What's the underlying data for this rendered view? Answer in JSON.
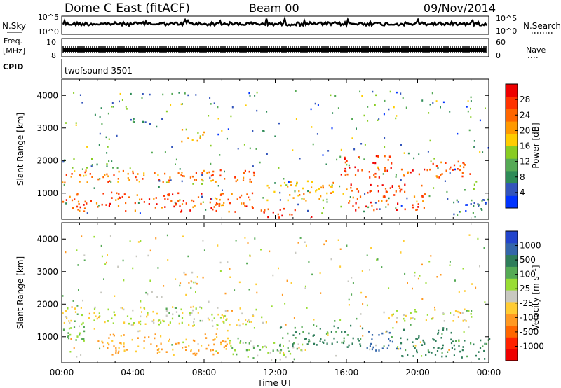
{
  "header": {
    "station": "Dome C East (fitACF)",
    "beam": "Beam 00",
    "date": "09/Nov/2014"
  },
  "strips": {
    "nsky_label": "N.Sky",
    "nsky_ticks": [
      "10^5",
      "10^0"
    ],
    "nsearch_label": "N.Search",
    "nsearch_ticks": [
      "10^5",
      "10^0"
    ],
    "freq_label": "Freq.",
    "freq_unit": "[MHz]",
    "freq_ticks": [
      "10",
      "8"
    ],
    "nave_label": "Nave",
    "nave_ticks": [
      "60",
      "0"
    ],
    "cpid_label": "CPID",
    "cpid_value": "twofsound 3501"
  },
  "colorbars": {
    "power": {
      "label": "Power [dB]",
      "ticks": [
        "4",
        "8",
        "12",
        "16",
        "20",
        "24",
        "28"
      ],
      "colors": [
        "#0033ff",
        "#3355bb",
        "#2e8b57",
        "#55aa55",
        "#88cc22",
        "#ffcc00",
        "#ff9900",
        "#ff6600",
        "#ff3300",
        "#ee0000"
      ]
    },
    "velocity": {
      "label": "Velocity [m s⁻¹]",
      "ticks": [
        "1000",
        "500",
        "100",
        "25",
        "-25",
        "-100",
        "-500",
        "-1000"
      ],
      "colors": [
        "#2244cc",
        "#3366aa",
        "#2e7d5a",
        "#55aa55",
        "#99dd33",
        "#c8c8c0",
        "#ffcc33",
        "#ff9922",
        "#ff6600",
        "#ff2200",
        "#ee0000"
      ]
    }
  },
  "chart_data": [
    {
      "type": "heatmap",
      "panel": "power",
      "ylabel": "Slant Range [km]",
      "ylim": [
        200,
        4500
      ],
      "yticks": [
        "1000",
        "2000",
        "3000",
        "4000"
      ],
      "xlim": [
        "00:00",
        "24:00"
      ],
      "bands": [
        {
          "t": [
            0.0,
            11.5
          ],
          "r": [
            1350,
            1750
          ],
          "value": 24
        },
        {
          "t": [
            0.0,
            11.0
          ],
          "r": [
            450,
            1050
          ],
          "value": 26
        },
        {
          "t": [
            0.0,
            3.0
          ],
          "r": [
            1800,
            2100
          ],
          "value": 12
        },
        {
          "t": [
            3.5,
            6.0
          ],
          "r": [
            3150,
            3300
          ],
          "value": 10
        },
        {
          "t": [
            6.5,
            8.0
          ],
          "r": [
            2600,
            3000
          ],
          "value": 18
        },
        {
          "t": [
            11.0,
            14.0
          ],
          "r": [
            250,
            550
          ],
          "value": 28
        },
        {
          "t": [
            11.5,
            16.0
          ],
          "r": [
            800,
            1400
          ],
          "value": 20
        },
        {
          "t": [
            15.5,
            18.5
          ],
          "r": [
            1500,
            2200
          ],
          "value": 28
        },
        {
          "t": [
            16.0,
            20.5
          ],
          "r": [
            500,
            1300
          ],
          "value": 27
        },
        {
          "t": [
            19.0,
            23.0
          ],
          "r": [
            1500,
            2000
          ],
          "value": 26
        },
        {
          "t": [
            22.0,
            24.0
          ],
          "r": [
            300,
            900
          ],
          "value": 8
        }
      ]
    },
    {
      "type": "heatmap",
      "panel": "velocity",
      "ylabel": "Slant Range [km]",
      "ylim": [
        200,
        4500
      ],
      "yticks": [
        "1000",
        "2000",
        "3000",
        "4000"
      ],
      "xlim": [
        "00:00",
        "24:00"
      ],
      "xticks": [
        "00:00",
        "04:00",
        "08:00",
        "12:00",
        "16:00",
        "20:00",
        "00:00"
      ],
      "xlabel": "Time UT",
      "bands": [
        {
          "t": [
            0.0,
            11.5
          ],
          "r": [
            1350,
            1950
          ],
          "value": 0
        },
        {
          "t": [
            0.0,
            2.0
          ],
          "r": [
            900,
            1400
          ],
          "value": 150
        },
        {
          "t": [
            2.0,
            9.5
          ],
          "r": [
            450,
            1100
          ],
          "value": -150
        },
        {
          "t": [
            6.5,
            8.0
          ],
          "r": [
            2600,
            3000
          ],
          "value": -50
        },
        {
          "t": [
            9.5,
            13.5
          ],
          "r": [
            300,
            900
          ],
          "value": 60
        },
        {
          "t": [
            12.0,
            17.0
          ],
          "r": [
            700,
            1400
          ],
          "value": 300
        },
        {
          "t": [
            17.0,
            19.0
          ],
          "r": [
            600,
            1200
          ],
          "value": 800
        },
        {
          "t": [
            19.0,
            22.0
          ],
          "r": [
            400,
            1300
          ],
          "value": 400
        },
        {
          "t": [
            18.0,
            23.0
          ],
          "r": [
            1500,
            1900
          ],
          "value": 0
        },
        {
          "t": [
            22.0,
            24.0
          ],
          "r": [
            300,
            1000
          ],
          "value": 300
        }
      ]
    }
  ]
}
